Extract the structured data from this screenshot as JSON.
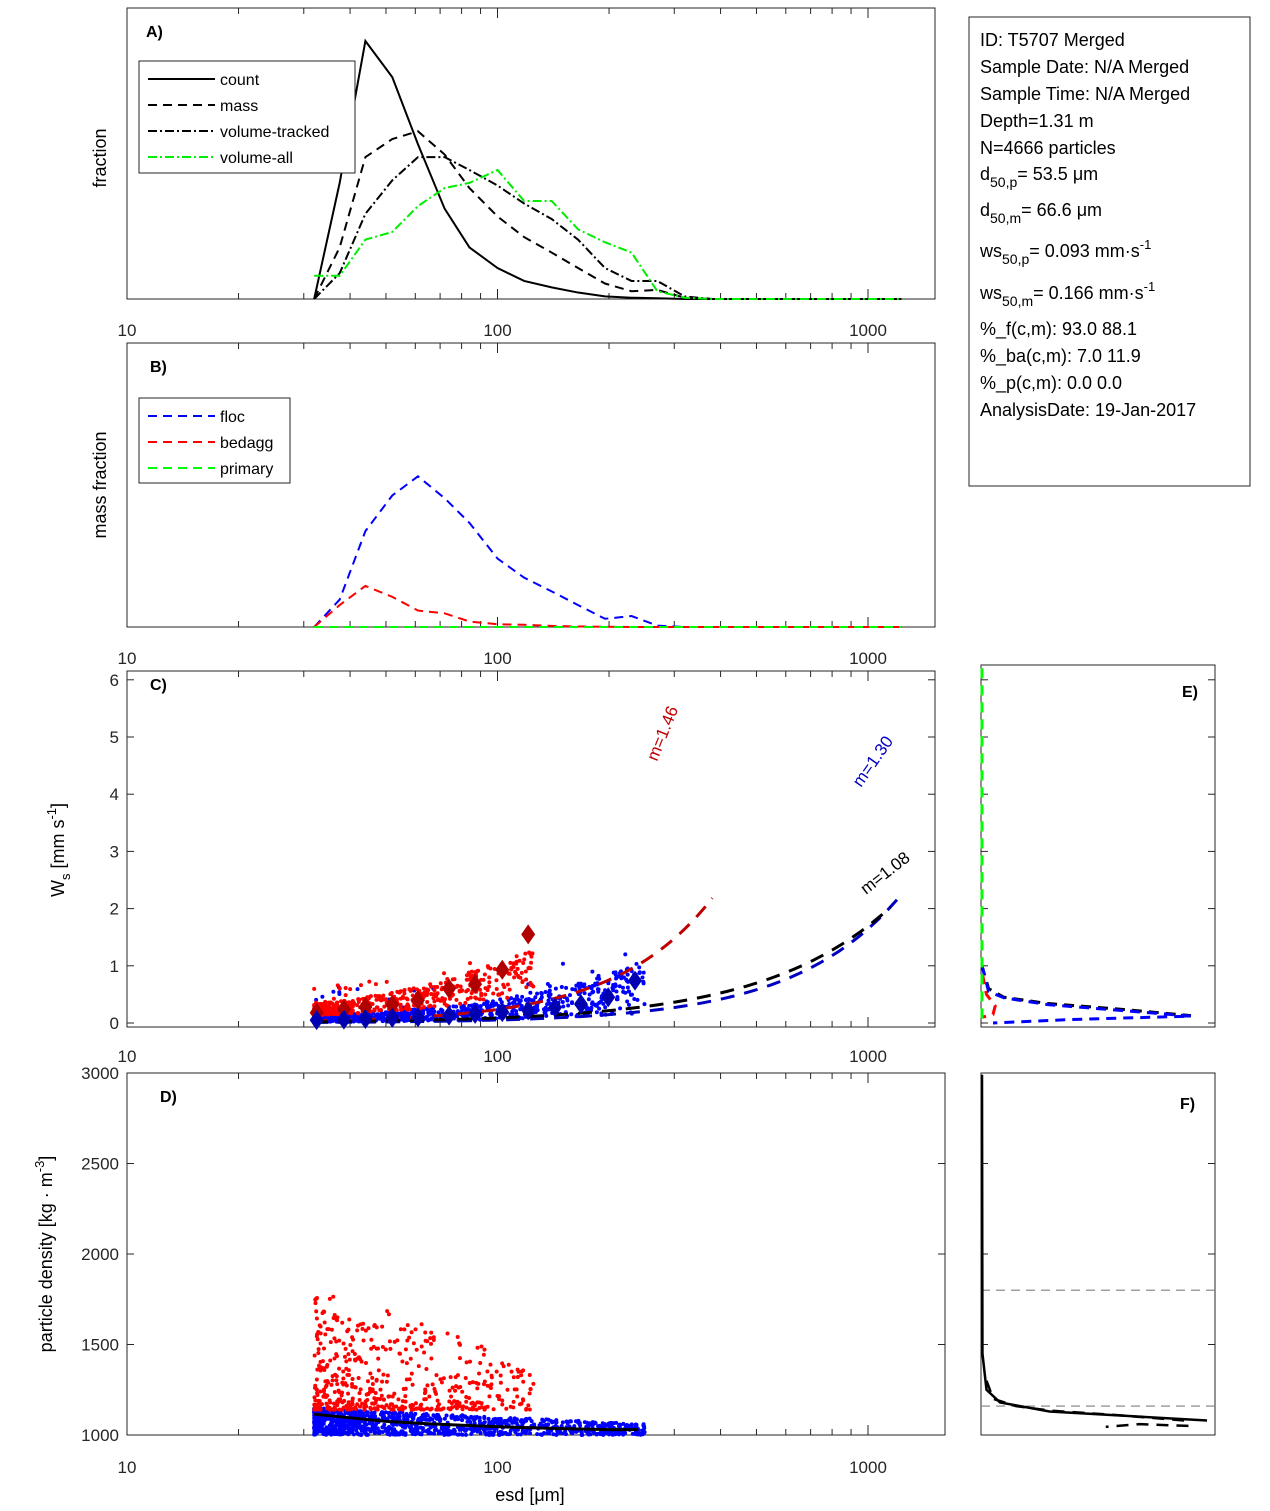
{
  "info_box": {
    "lines": [
      "ID: T5707 Merged",
      "Sample Date: N/A Merged",
      "Sample Time: N/A Merged",
      "Depth=1.31 m",
      "N=4666 particles"
    ],
    "d50p": {
      "base": "d",
      "sub": "50,p",
      "rest": "=  53.5 μm"
    },
    "d50m": {
      "base": "d",
      "sub": "50,m",
      "rest": "=  66.6 μm"
    },
    "ws50p": {
      "base": "ws",
      "sub": "50,p",
      "rest": "= 0.093 mm·s",
      "sup": "-1"
    },
    "ws50m": {
      "base": "ws",
      "sub": "50,m",
      "rest": "= 0.166 mm·s",
      "sup": "-1"
    },
    "lines2": [
      "%_f(c,m): 93.0 88.1",
      "%_ba(c,m): 7.0 11.9",
      "%_p(c,m): 0.0 0.0",
      "AnalysisDate: 19-Jan-2017"
    ]
  },
  "colors": {
    "floc": "#0000ff",
    "bedagg": "#ff0000",
    "primary": "#00ff00",
    "volume_all": "#00ee00",
    "floc_fit": "#0000c0",
    "bedagg_fit": "#c00000",
    "all_fit": "#000000",
    "ref_line": "#808080"
  },
  "chart_data": [
    {
      "id": "A",
      "type": "line",
      "panel_label": "A)",
      "xscale": "log",
      "xlim": [
        10,
        1500
      ],
      "xticks": [
        10,
        100,
        1000
      ],
      "xtick_labels": [
        "10",
        "100",
        "1000"
      ],
      "ylabel": "fraction",
      "ylim": [
        0,
        1
      ],
      "legend": {
        "placement": "top-left",
        "entries": [
          "count",
          "mass",
          "volume-tracked",
          "volume-all"
        ]
      },
      "x": [
        32,
        37.5,
        44,
        52,
        61,
        72,
        84,
        100,
        118,
        140,
        165,
        195,
        230,
        270,
        320,
        380,
        450,
        530,
        630,
        740,
        880,
        1040,
        1230
      ],
      "series": [
        {
          "name": "count",
          "style": "solid",
          "values": [
            0,
            0.45,
            1.0,
            0.86,
            0.6,
            0.35,
            0.2,
            0.12,
            0.07,
            0.045,
            0.025,
            0.01,
            0.005,
            0.003,
            0,
            0,
            0,
            0,
            0,
            0,
            0,
            0,
            0
          ]
        },
        {
          "name": "mass",
          "style": "dashed",
          "values": [
            0,
            0.2,
            0.55,
            0.62,
            0.65,
            0.56,
            0.43,
            0.32,
            0.24,
            0.18,
            0.12,
            0.06,
            0.03,
            0.035,
            0.005,
            0,
            0,
            0,
            0,
            0,
            0,
            0,
            0
          ]
        },
        {
          "name": "volume-tracked",
          "style": "dash-dot",
          "values": [
            0,
            0.1,
            0.33,
            0.46,
            0.55,
            0.55,
            0.5,
            0.44,
            0.37,
            0.31,
            0.23,
            0.12,
            0.07,
            0.07,
            0.01,
            0,
            0,
            0,
            0,
            0,
            0,
            0,
            0
          ]
        },
        {
          "name": "volume-all",
          "style": "dash-dot",
          "color": "#00ee00",
          "values": [
            0.09,
            0.09,
            0.23,
            0.26,
            0.36,
            0.43,
            0.45,
            0.5,
            0.38,
            0.38,
            0.27,
            0.22,
            0.18,
            0.03,
            0.005,
            0,
            0,
            0,
            0,
            0,
            0,
            0,
            0
          ]
        }
      ]
    },
    {
      "id": "B",
      "type": "line",
      "panel_label": "B)",
      "xscale": "log",
      "xlim": [
        10,
        1500
      ],
      "xticks": [
        10,
        100,
        1000
      ],
      "xtick_labels": [
        "10",
        "100",
        "1000"
      ],
      "ylabel": "mass fraction",
      "ylim": [
        0,
        1
      ],
      "legend": {
        "placement": "top-left",
        "entries": [
          "floc",
          "bedagg",
          "primary"
        ]
      },
      "x": [
        32,
        37.5,
        44,
        52,
        61,
        72,
        84,
        100,
        118,
        140,
        165,
        195,
        230,
        270,
        320,
        380,
        450,
        530,
        630,
        740,
        880,
        1040,
        1230
      ],
      "series": [
        {
          "name": "floc",
          "style": "dashed",
          "values": [
            0,
            0.1,
            0.35,
            0.48,
            0.55,
            0.47,
            0.38,
            0.25,
            0.18,
            0.13,
            0.08,
            0.03,
            0.04,
            0.005,
            0,
            0,
            0,
            0,
            0,
            0,
            0,
            0,
            0
          ]
        },
        {
          "name": "bedagg",
          "style": "dashed",
          "values": [
            0,
            0.08,
            0.15,
            0.11,
            0.06,
            0.05,
            0.02,
            0.01,
            0.008,
            0.004,
            0.002,
            0.001,
            0,
            0,
            0,
            0,
            0,
            0,
            0,
            0,
            0,
            0,
            0
          ]
        },
        {
          "name": "primary",
          "style": "dashed",
          "values": [
            0,
            0,
            0,
            0,
            0,
            0,
            0,
            0,
            0,
            0,
            0,
            0,
            0,
            0,
            0,
            0,
            0,
            0,
            0,
            0,
            0,
            0,
            0
          ]
        }
      ]
    },
    {
      "id": "C",
      "type": "scatter",
      "panel_label": "C)",
      "xscale": "log",
      "xlim": [
        10,
        1500
      ],
      "xticks": [
        10,
        100,
        1000
      ],
      "xtick_labels": [
        "10",
        "100",
        "1000"
      ],
      "ylabel": "W",
      "ylabel_sub": "s",
      "ylabel_rest": " [mm s",
      "ylabel_sup": "-1",
      "ylabel_end": "]",
      "ylim": [
        -0.1,
        6.2
      ],
      "yticks": [
        0,
        1,
        2,
        3,
        4,
        5,
        6
      ],
      "ytick_labels": [
        "0",
        "1",
        "2",
        "3",
        "4",
        "5",
        "6"
      ],
      "fits": [
        {
          "name": "bedagg fit",
          "label": "m=1.46",
          "m": 1.46,
          "x_range": [
            32,
            380
          ],
          "coef": 0.000114
        },
        {
          "name": "floc fit",
          "label": "m=1.30",
          "m": 1.3,
          "x_range": [
            32,
            1200
          ],
          "coef": 5.2e-05
        },
        {
          "name": "all fit",
          "label": "m=1.08",
          "m": 1.08,
          "x_range": [
            32,
            1150
          ],
          "coef": 0.000245
        }
      ],
      "bin_means_bedagg": {
        "x": [
          32.5,
          38.5,
          44,
          52,
          61,
          74,
          87,
          103,
          121
        ],
        "y": [
          0.18,
          0.24,
          0.28,
          0.32,
          0.4,
          0.6,
          0.68,
          0.93,
          1.55
        ]
      },
      "bin_means_floc": {
        "x": [
          32.5,
          38.5,
          44,
          52,
          61,
          74,
          87,
          103,
          121,
          143,
          168,
          199,
          235
        ],
        "y": [
          0.05,
          0.06,
          0.07,
          0.09,
          0.1,
          0.13,
          0.16,
          0.19,
          0.22,
          0.27,
          0.33,
          0.45,
          0.74
        ]
      },
      "scatter_groups": [
        {
          "name": "bedagg particles",
          "x_range": [
            32,
            125
          ],
          "y_range": [
            0.1,
            1.35
          ]
        },
        {
          "name": "floc particles",
          "x_range": [
            32,
            250
          ],
          "y_range": [
            0.0,
            1.2
          ]
        }
      ]
    },
    {
      "id": "D",
      "type": "scatter",
      "panel_label": "D)",
      "xscale": "log",
      "xlim": [
        10,
        1500
      ],
      "xticks": [
        10,
        100,
        1000
      ],
      "xtick_labels": [
        "10",
        "100",
        "1000"
      ],
      "xlabel": "esd [μm]",
      "ylabel": "particle density [kg · m",
      "ylabel_sup": "-3",
      "ylabel_end": "]",
      "ylim": [
        1000,
        3000
      ],
      "yticks": [
        1000,
        1500,
        2000,
        2500,
        3000
      ],
      "ytick_labels": [
        "1000",
        "1500",
        "2000",
        "2500",
        "3000"
      ],
      "trend": {
        "x": [
          32,
          40,
          50,
          65,
          85,
          110,
          150,
          200,
          240
        ],
        "y": [
          1115,
          1095,
          1075,
          1062,
          1052,
          1043,
          1035,
          1030,
          1030
        ]
      },
      "scatter_groups": [
        {
          "name": "bedagg particles",
          "x_range": [
            32,
            125
          ],
          "y_range": [
            1130,
            1800
          ]
        },
        {
          "name": "floc particles",
          "x_range": [
            32,
            250
          ],
          "y_range": [
            1000,
            1150
          ]
        }
      ]
    },
    {
      "id": "E",
      "type": "line",
      "panel_label": "E)",
      "orientation": "vertical-distribution",
      "ylim": [
        -0.1,
        6.2
      ],
      "yticks": [
        0,
        1,
        2,
        3,
        4,
        5,
        6
      ],
      "series": [
        {
          "name": "all",
          "style": "dashed",
          "color": "#000000",
          "points": [
            [
              0,
              1.0
            ],
            [
              0.03,
              0.6
            ],
            [
              0.1,
              0.45
            ],
            [
              0.3,
              0.34
            ],
            [
              0.6,
              0.25
            ],
            [
              0.95,
              0.13
            ]
          ]
        },
        {
          "name": "floc",
          "style": "dashed",
          "color": "#0000ff",
          "points": [
            [
              0,
              1.0
            ],
            [
              0.03,
              0.55
            ],
            [
              0.1,
              0.44
            ],
            [
              0.3,
              0.32
            ],
            [
              0.6,
              0.23
            ],
            [
              0.95,
              0.12
            ],
            [
              0.4,
              0.06
            ],
            [
              0.05,
              0.0
            ]
          ]
        },
        {
          "name": "bedagg",
          "style": "dashed",
          "color": "#ff0000",
          "points": [
            [
              0,
              6.2
            ],
            [
              0,
              0.9
            ],
            [
              0.02,
              0.5
            ],
            [
              0.06,
              0.3
            ],
            [
              0.05,
              0.15
            ],
            [
              0,
              0.1
            ]
          ]
        },
        {
          "name": "primary",
          "style": "dashed",
          "color": "#00ff00",
          "points": [
            [
              0,
              6.2
            ],
            [
              0,
              0.0
            ]
          ]
        }
      ]
    },
    {
      "id": "F",
      "type": "line",
      "panel_label": "F)",
      "orientation": "vertical-distribution",
      "ylim": [
        1000,
        3000
      ],
      "yticks": [
        1000,
        1500,
        2000,
        2500,
        3000
      ],
      "reference_lines": [
        1800,
        1160
      ],
      "series": [
        {
          "name": "count",
          "style": "solid",
          "points": [
            [
              0,
              2990
            ],
            [
              0.002,
              1450
            ],
            [
              0.02,
              1250
            ],
            [
              0.08,
              1180
            ],
            [
              0.3,
              1130
            ],
            [
              1.0,
              1080
            ]
          ]
        },
        {
          "name": "mass",
          "style": "dashed",
          "points": [
            [
              0.02,
              1300
            ],
            [
              0.05,
              1200
            ],
            [
              0.15,
              1160
            ],
            [
              0.3,
              1135
            ],
            [
              0.6,
              1110
            ],
            [
              0.9,
              1080
            ],
            [
              0.92,
              1050
            ],
            [
              0.7,
              1060
            ],
            [
              0.55,
              1045
            ]
          ]
        }
      ]
    }
  ]
}
